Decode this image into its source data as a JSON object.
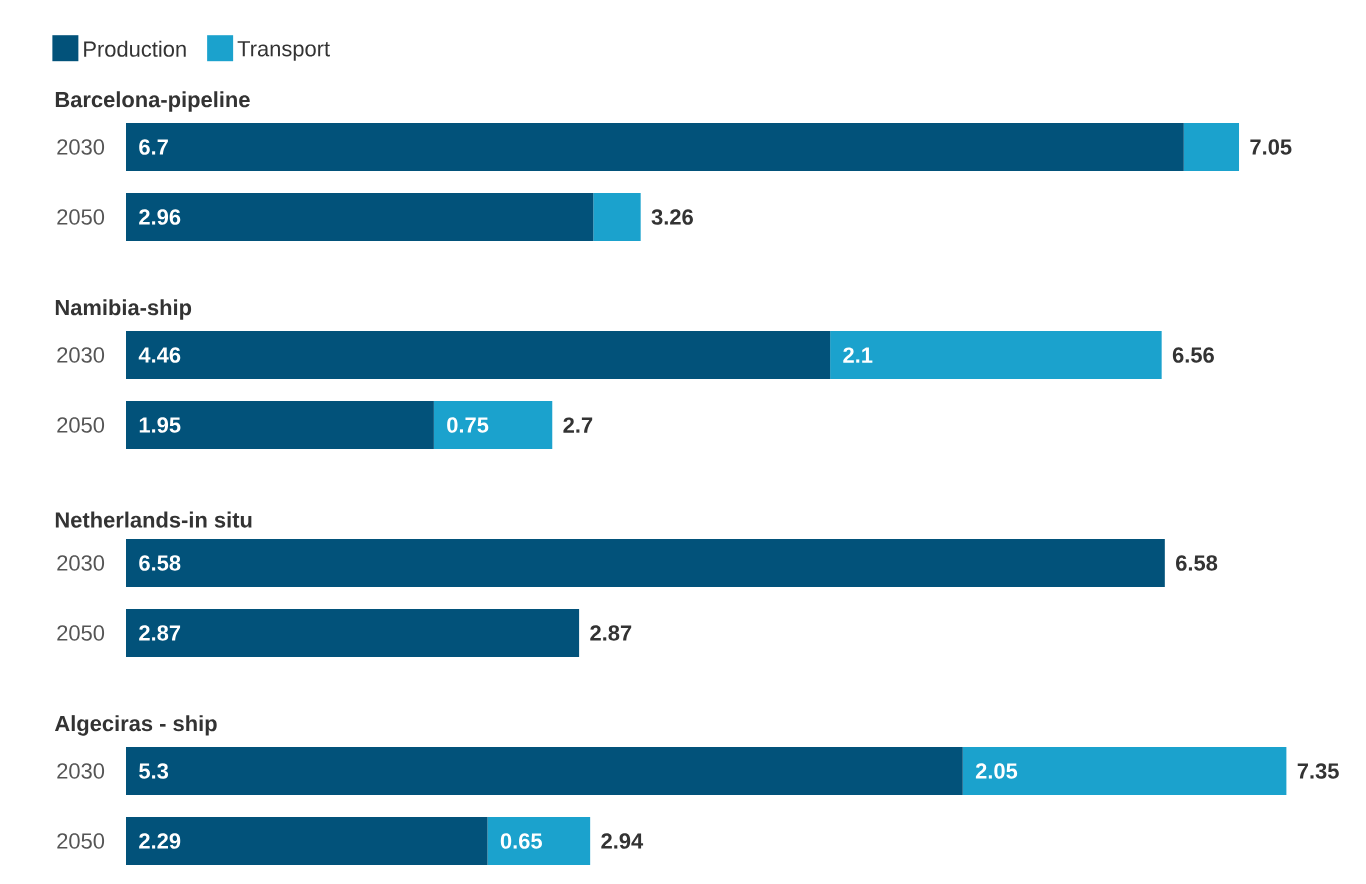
{
  "chart_data": [
    {
      "type": "bar",
      "orientation": "horizontal",
      "stacked": true,
      "title": "Barcelona-pipeline",
      "legend": "top left",
      "categories": [
        "2030",
        "2050"
      ],
      "series": [
        {
          "name": "Production",
          "color": "#02527a",
          "values": [
            6.7,
            2.96
          ],
          "value_labels": [
            "6.7",
            "2.96"
          ]
        },
        {
          "name": "Transport",
          "color": "#1ba2cd",
          "values": [
            0.35,
            0.3
          ],
          "value_labels": [
            null,
            null
          ]
        }
      ],
      "totals": [
        "7.05",
        "3.26"
      ]
    },
    {
      "type": "bar",
      "orientation": "horizontal",
      "stacked": true,
      "title": "Namibia-ship",
      "categories": [
        "2030",
        "2050"
      ],
      "series": [
        {
          "color": "#02527a",
          "values": [
            4.46,
            1.95
          ],
          "value_labels": [
            "4.46",
            "1.95"
          ]
        },
        {
          "color": "#1ba2cd",
          "values": [
            2.1,
            0.75
          ],
          "value_labels": [
            "2.1",
            "0.75"
          ]
        }
      ],
      "totals": [
        "6.56",
        "2.7"
      ]
    },
    {
      "type": "bar",
      "orientation": "horizontal",
      "stacked": true,
      "title": "Netherlands-in situ",
      "categories": [
        "2030",
        "2050"
      ],
      "series": [
        {
          "color": "#02527a",
          "values": [
            6.58,
            2.87
          ],
          "value_labels": [
            "6.58",
            "2.87"
          ]
        },
        {
          "color": "#1ba2cd",
          "values": [
            null,
            null
          ],
          "value_labels": [
            null,
            null
          ]
        }
      ],
      "totals": [
        "6.58",
        "2.87"
      ]
    },
    {
      "type": "bar",
      "orientation": "horizontal",
      "stacked": true,
      "title": "Algeciras - ship",
      "categories": [
        "2030",
        "2050"
      ],
      "series": [
        {
          "color": "#02527a",
          "values": [
            5.3,
            2.29
          ],
          "value_labels": [
            "5.3",
            "2.29"
          ]
        },
        {
          "color": "#1ba2cd",
          "values": [
            2.05,
            0.65
          ],
          "value_labels": [
            "2.05",
            "0.65"
          ]
        }
      ],
      "totals": [
        "7.35",
        "2.94"
      ]
    }
  ]
}
